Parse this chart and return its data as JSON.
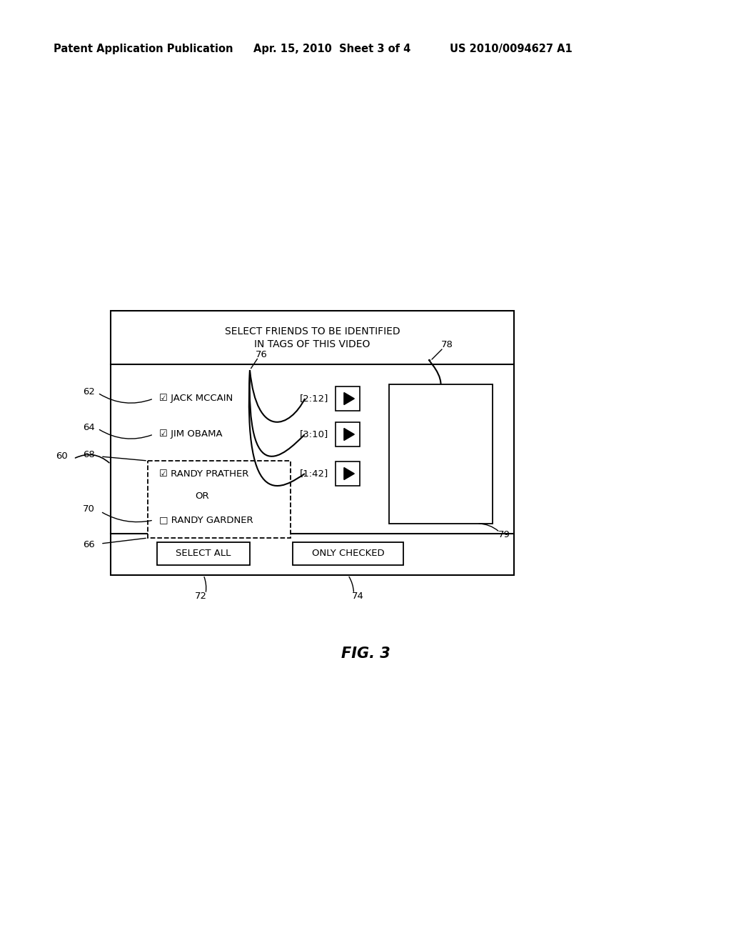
{
  "bg_color": "#ffffff",
  "header_text": "Patent Application Publication",
  "header_date": "Apr. 15, 2010  Sheet 3 of 4",
  "header_patent": "US 2010/0094627 A1",
  "fig_label": "FIG. 3",
  "title_line1": "SELECT FRIENDS TO BE IDENTIFIED",
  "title_line2": "IN TAGS OF THIS VIDEO",
  "label_60": "60",
  "label_62": "62",
  "label_64": "64",
  "label_66": "66",
  "label_68": "68",
  "label_70": "70",
  "label_72": "72",
  "label_74": "74",
  "label_76": "76",
  "label_78": "78",
  "label_79": "79",
  "jack_mccain": "☑ JACK MCCAIN",
  "jim_obama": "☑ JIM OBAMA",
  "randy_prather": "☑ RANDY PRATHER",
  "or_text": "OR",
  "randy_gardner": "□ RANDY GARDNER",
  "time1": "[2:12]",
  "time2": "[3:10]",
  "time3": "[1:42]",
  "btn_select_all": "SELECT ALL",
  "btn_only_checked": "ONLY CHECKED",
  "font_color": "#000000",
  "line_color": "#000000"
}
